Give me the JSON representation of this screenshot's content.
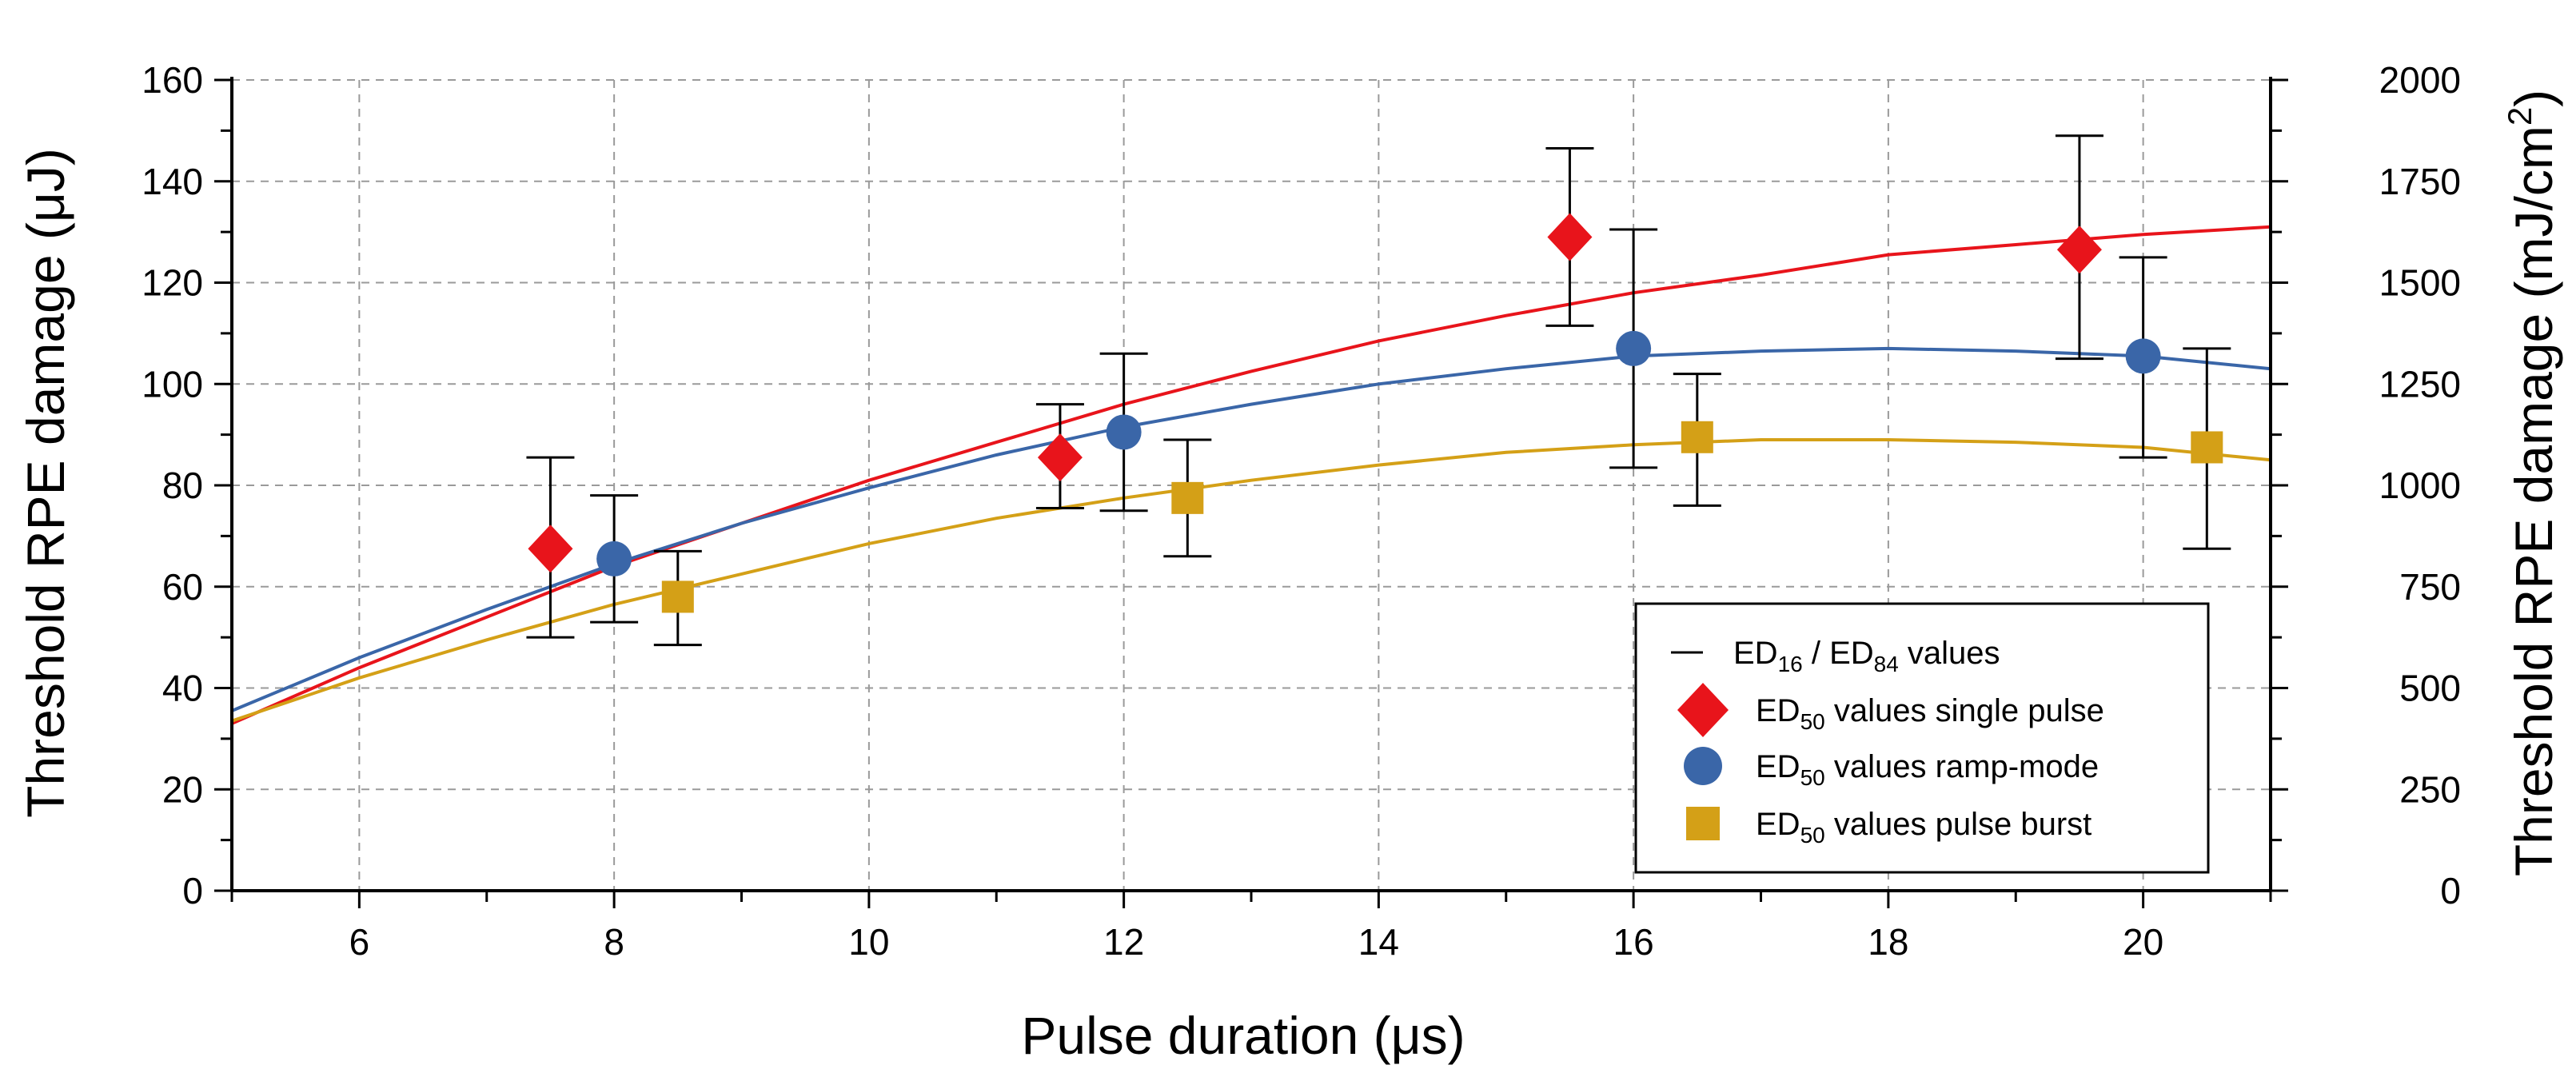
{
  "chart_data": {
    "type": "scatter",
    "xlabel": "Pulse duration (μs)",
    "ylabel": "Threshold RPE damage (μJ)",
    "ylabel_right": "Threshold RPE damage (mJ/cm²)",
    "ylabel_right_main": "Threshold RPE damage (mJ/cm",
    "ylabel_right_sup": "2",
    "ylabel_right_close": ")",
    "xlim": [
      5,
      21
    ],
    "ylim": [
      0,
      160
    ],
    "ylim_right": [
      0,
      2000
    ],
    "x_ticks": [
      "6",
      "8",
      "10",
      "12",
      "14",
      "16",
      "18",
      "20"
    ],
    "y_ticks": [
      "0",
      "20",
      "40",
      "60",
      "80",
      "100",
      "120",
      "140",
      "160"
    ],
    "y_right_ticks": [
      "0",
      "250",
      "500",
      "750",
      "1000",
      "1250",
      "1500",
      "1750",
      "2000"
    ],
    "grid": true,
    "legend_position": "bottom-right",
    "legend": [
      {
        "prefix": "ED",
        "sub": "16",
        "mid": " / ED",
        "sub2": "84",
        "suffix": " values",
        "marker": "errorbar"
      },
      {
        "prefix": "ED",
        "sub": "50",
        "suffix": " values single pulse",
        "marker": "diamond",
        "color": "#e8141b"
      },
      {
        "prefix": "ED",
        "sub": "50",
        "suffix": " values ramp-mode",
        "marker": "circle",
        "color": "#3a66a8"
      },
      {
        "prefix": "ED",
        "sub": "50",
        "suffix": " values pulse burst",
        "marker": "square",
        "color": "#d4a017"
      }
    ],
    "series": [
      {
        "name": "ED50 values single pulse",
        "marker": "diamond",
        "color": "#e8141b",
        "x": [
          7.5,
          11.5,
          15.5,
          19.5
        ],
        "y": [
          67.5,
          85.5,
          129,
          126.5
        ],
        "err_low": [
          50,
          75.5,
          111.5,
          105
        ],
        "err_high": [
          85.5,
          96,
          146.5,
          149
        ],
        "fit": [
          [
            5,
            33
          ],
          [
            6,
            44
          ],
          [
            7,
            54
          ],
          [
            8,
            64
          ],
          [
            9,
            72.5
          ],
          [
            10,
            81
          ],
          [
            11,
            88.5
          ],
          [
            12,
            96
          ],
          [
            13,
            102.5
          ],
          [
            14,
            108.5
          ],
          [
            15,
            113.5
          ],
          [
            16,
            118
          ],
          [
            17,
            121.5
          ],
          [
            18,
            125.5
          ],
          [
            19,
            127.5
          ],
          [
            20,
            129.5
          ],
          [
            21,
            131
          ]
        ]
      },
      {
        "name": "ED50 values ramp-mode",
        "marker": "circle",
        "color": "#3a66a8",
        "x": [
          8,
          12,
          16,
          20
        ],
        "y": [
          65.5,
          90.5,
          107,
          105.5
        ],
        "err_low": [
          53,
          75,
          83.5,
          85.5
        ],
        "err_high": [
          78,
          106,
          130.5,
          125
        ],
        "fit": [
          [
            5,
            35.5
          ],
          [
            6,
            46
          ],
          [
            7,
            55.5
          ],
          [
            8,
            64.5
          ],
          [
            9,
            72.5
          ],
          [
            10,
            79.5
          ],
          [
            11,
            86
          ],
          [
            12,
            91.5
          ],
          [
            13,
            96
          ],
          [
            14,
            100
          ],
          [
            15,
            103
          ],
          [
            16,
            105.5
          ],
          [
            17,
            106.5
          ],
          [
            18,
            107
          ],
          [
            19,
            106.5
          ],
          [
            20,
            105.5
          ],
          [
            21,
            103
          ]
        ]
      },
      {
        "name": "ED50 values pulse burst",
        "marker": "square",
        "color": "#d4a017",
        "x": [
          8.5,
          12.5,
          16.5,
          20.5
        ],
        "y": [
          58,
          77.5,
          89.5,
          87.5
        ],
        "err_low": [
          48.5,
          66,
          76,
          67.5
        ],
        "err_high": [
          67,
          89,
          102,
          107
        ],
        "fit": [
          [
            5,
            33.5
          ],
          [
            6,
            42
          ],
          [
            7,
            49.5
          ],
          [
            8,
            56.5
          ],
          [
            9,
            62.5
          ],
          [
            10,
            68.5
          ],
          [
            11,
            73.5
          ],
          [
            12,
            77.5
          ],
          [
            13,
            81
          ],
          [
            14,
            84
          ],
          [
            15,
            86.5
          ],
          [
            16,
            88
          ],
          [
            17,
            89
          ],
          [
            18,
            89
          ],
          [
            19,
            88.5
          ],
          [
            20,
            87.5
          ],
          [
            21,
            85
          ]
        ]
      }
    ]
  }
}
